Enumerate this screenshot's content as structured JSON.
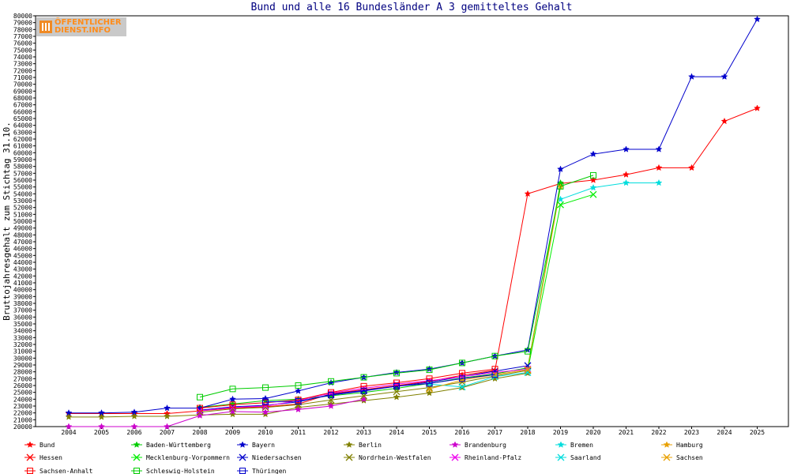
{
  "logo": {
    "line1": "ÖFFENTLICHER",
    "line2": "DIENST.INFO"
  },
  "chart_data": {
    "type": "line",
    "title": "Bund und alle 16 Bundesländer A 3 gemitteltes Gehalt",
    "xlabel": "",
    "ylabel": "Bruttojahresgehalt zum Stichtag 31.10.",
    "ylim": [
      20000,
      80000
    ],
    "ytick_step": 1000,
    "grid": false,
    "legend_position": "bottom",
    "x": [
      "2004",
      "2005",
      "2006",
      "2007",
      "2008",
      "2009",
      "2010",
      "2011",
      "2012",
      "2013",
      "2014",
      "2015",
      "2016",
      "2017",
      "2018",
      "2019",
      "2020",
      "2021",
      "2022",
      "2023",
      "2024",
      "2025"
    ],
    "series": [
      {
        "name": "Bund",
        "color": "#ff0000",
        "marker": "star",
        "values": [
          21900,
          21900,
          21900,
          21900,
          22300,
          22700,
          22900,
          23300,
          24800,
          25400,
          26000,
          26600,
          27500,
          28200,
          54000,
          55500,
          56000,
          56800,
          57800,
          57800,
          64600,
          66500
        ]
      },
      {
        "name": "Baden-Württemberg",
        "color": "#00cc00",
        "marker": "star",
        "values": [
          null,
          null,
          null,
          null,
          22800,
          23300,
          23800,
          24000,
          24500,
          25000,
          25600,
          26300,
          27100,
          27700,
          28600,
          55600,
          null,
          null,
          null,
          null,
          null,
          null
        ]
      },
      {
        "name": "Bayern",
        "color": "#0000cc",
        "marker": "star",
        "values": [
          22000,
          22000,
          22100,
          22700,
          22700,
          24000,
          24100,
          25200,
          26400,
          27200,
          27900,
          28400,
          29300,
          30300,
          31200,
          57600,
          59800,
          60500,
          60500,
          71100,
          71100,
          79500
        ]
      },
      {
        "name": "Berlin",
        "color": "#808000",
        "marker": "star",
        "values": [
          21400,
          21400,
          21500,
          21500,
          21700,
          21800,
          21800,
          22800,
          23300,
          23800,
          24300,
          24900,
          25700,
          27000,
          27800,
          null,
          null,
          null,
          null,
          null,
          null,
          null
        ]
      },
      {
        "name": "Brandenburg",
        "color": "#cc00cc",
        "marker": "star",
        "values": [
          20000,
          20000,
          20000,
          20000,
          21600,
          22200,
          22100,
          22500,
          23000,
          24000,
          null,
          null,
          null,
          null,
          null,
          null,
          null,
          null,
          null,
          null,
          null,
          null
        ]
      },
      {
        "name": "Bremen",
        "color": "#00dddd",
        "marker": "star",
        "values": [
          null,
          null,
          null,
          null,
          null,
          null,
          null,
          null,
          null,
          null,
          null,
          null,
          null,
          null,
          null,
          53200,
          54900,
          55600,
          55600,
          null,
          null,
          null
        ]
      },
      {
        "name": "Hamburg",
        "color": "#e8a000",
        "marker": "star",
        "values": [
          null,
          null,
          null,
          null,
          null,
          null,
          null,
          null,
          null,
          null,
          null,
          null,
          null,
          null,
          28500,
          55000,
          null,
          null,
          null,
          null,
          null,
          null
        ]
      },
      {
        "name": "Hessen",
        "color": "#ff0000",
        "marker": "x",
        "values": [
          null,
          null,
          null,
          null,
          null,
          null,
          null,
          null,
          null,
          null,
          null,
          null,
          null,
          null,
          null,
          null,
          null,
          null,
          null,
          null,
          null,
          null
        ]
      },
      {
        "name": "Mecklenburg-Vorpommern",
        "color": "#00ee00",
        "marker": "x",
        "values": [
          null,
          null,
          null,
          null,
          null,
          null,
          null,
          null,
          null,
          null,
          null,
          null,
          null,
          null,
          28200,
          52400,
          53900,
          null,
          null,
          null,
          null,
          null
        ]
      },
      {
        "name": "Niedersachsen",
        "color": "#0000cc",
        "marker": "x",
        "values": [
          null,
          null,
          null,
          null,
          22400,
          22900,
          23100,
          23600,
          24700,
          25300,
          25900,
          26500,
          27300,
          28100,
          28900,
          null,
          null,
          null,
          null,
          null,
          null,
          null
        ]
      },
      {
        "name": "Nordrhein-Westfalen",
        "color": "#808000",
        "marker": "x",
        "values": [
          null,
          null,
          null,
          null,
          22100,
          22600,
          22800,
          23200,
          23900,
          24500,
          25100,
          25700,
          26500,
          27400,
          28200,
          null,
          null,
          null,
          null,
          null,
          null,
          null
        ]
      },
      {
        "name": "Rheinland-Pfalz",
        "color": "#ee00ee",
        "marker": "x",
        "values": [
          null,
          null,
          null,
          null,
          22300,
          22800,
          23000,
          23800,
          24900,
          25600,
          26200,
          26700,
          27300,
          27900,
          28400,
          null,
          null,
          null,
          null,
          null,
          null,
          null
        ]
      },
      {
        "name": "Saarland",
        "color": "#00dddd",
        "marker": "x",
        "values": [
          null,
          null,
          null,
          null,
          null,
          null,
          null,
          null,
          null,
          null,
          null,
          26200,
          25800,
          27300,
          27900,
          null,
          null,
          null,
          null,
          null,
          null,
          null
        ]
      },
      {
        "name": "Sachsen",
        "color": "#e8a000",
        "marker": "x",
        "values": [
          null,
          null,
          null,
          null,
          null,
          null,
          null,
          null,
          null,
          null,
          null,
          25500,
          26800,
          27600,
          28300,
          null,
          null,
          null,
          null,
          null,
          null,
          null
        ]
      },
      {
        "name": "Sachsen-Anhalt",
        "color": "#ff0000",
        "marker": "square",
        "values": [
          null,
          null,
          null,
          null,
          22700,
          23200,
          23500,
          23900,
          25000,
          25900,
          26400,
          27000,
          27800,
          28400,
          null,
          null,
          null,
          null,
          null,
          null,
          null,
          null
        ]
      },
      {
        "name": "Schleswig-Holstein",
        "color": "#00cc00",
        "marker": "square",
        "values": [
          null,
          null,
          null,
          null,
          24300,
          25500,
          25700,
          26000,
          26600,
          27200,
          27800,
          28300,
          29300,
          30300,
          31000,
          55100,
          56700,
          null,
          null,
          null,
          null,
          null
        ]
      },
      {
        "name": "Thüringen",
        "color": "#0000cc",
        "marker": "square",
        "values": [
          null,
          null,
          null,
          null,
          null,
          null,
          23600,
          23700,
          24600,
          25200,
          25900,
          26300,
          27000,
          27600,
          null,
          null,
          null,
          null,
          null,
          null,
          null,
          null
        ]
      }
    ]
  }
}
